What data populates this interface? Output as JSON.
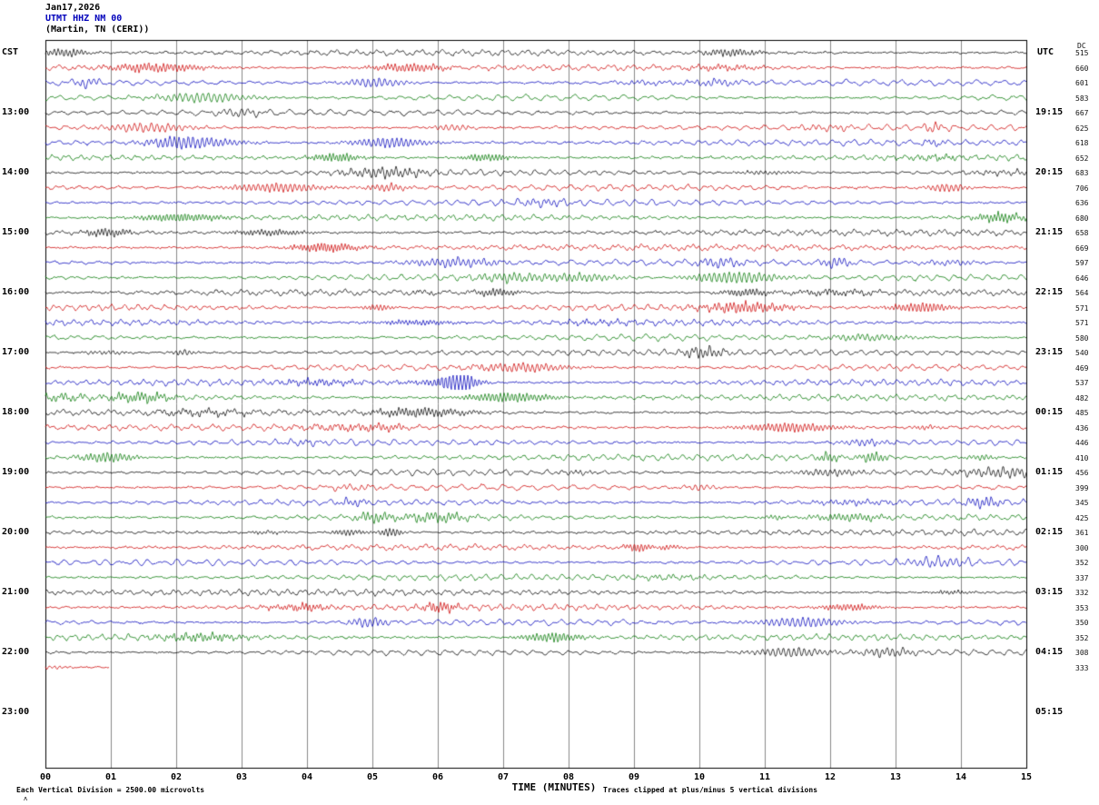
{
  "title": {
    "date": "Jan17,2026",
    "station": "UTMT HHZ NM 00",
    "location": "(Martin, TN (CERI))"
  },
  "axis": {
    "left_header": "CST",
    "right_header": "UTC",
    "dc_label": "DC",
    "x_title": "TIME (MINUTES)",
    "x_ticks": [
      "00",
      "01",
      "02",
      "03",
      "04",
      "05",
      "06",
      "07",
      "08",
      "09",
      "10",
      "11",
      "12",
      "13",
      "14",
      "15"
    ],
    "left_time_labels": [
      "13:00",
      "14:00",
      "15:00",
      "16:00",
      "17:00",
      "18:00",
      "19:00",
      "20:00",
      "21:00",
      "22:00",
      "23:00"
    ],
    "right_time_labels": [
      "19:15",
      "20:15",
      "21:15",
      "22:15",
      "23:15",
      "00:15",
      "01:15",
      "02:15",
      "03:15",
      "04:15",
      "05:15"
    ],
    "label_rows": [
      4,
      8,
      12,
      16,
      20,
      24,
      28,
      32,
      36,
      40,
      44
    ]
  },
  "footer": {
    "left_note": "Each Vertical Division = 2500.00 microvolts",
    "right_note": "Traces clipped at plus/minus 5 vertical divisions",
    "corner_mark": "ʌ"
  },
  "colors": {
    "text": "#000000",
    "station_line": "#0000bb",
    "grid": "#888888",
    "frame": "#000000"
  },
  "chart_data": {
    "type": "line",
    "subtype": "helicorder-seismogram",
    "station": "UTMT HHZ NM 00",
    "title": "Jan17,2026 UTMT HHZ NM 00 (Martin, TN (CERI))",
    "xlabel": "TIME (MINUTES)",
    "x_range_minutes": [
      0,
      15
    ],
    "minutes_per_row": 15,
    "rows_start_cst": "12:00",
    "rows_end_cst": "22:15",
    "trace_color_cycle": [
      "#000000",
      "#cc0000",
      "#0000bb",
      "#007700"
    ],
    "num_trace_rows": 42,
    "partial_last_row_fraction": 0.065,
    "row_amplitude_values": [
      515,
      660,
      601,
      583,
      667,
      625,
      618,
      652,
      683,
      706,
      636,
      680,
      658,
      669,
      597,
      646,
      564,
      571,
      571,
      580,
      540,
      469,
      537,
      482,
      485,
      436,
      446,
      410,
      456,
      399,
      345,
      425,
      361,
      300,
      352,
      337,
      332,
      353,
      350,
      352,
      308,
      333
    ],
    "clip_divisions": 5,
    "microvolts_per_division": 2500.0,
    "grid_minutes_interval": 1,
    "legend": "none",
    "noise_seed": 1379
  }
}
